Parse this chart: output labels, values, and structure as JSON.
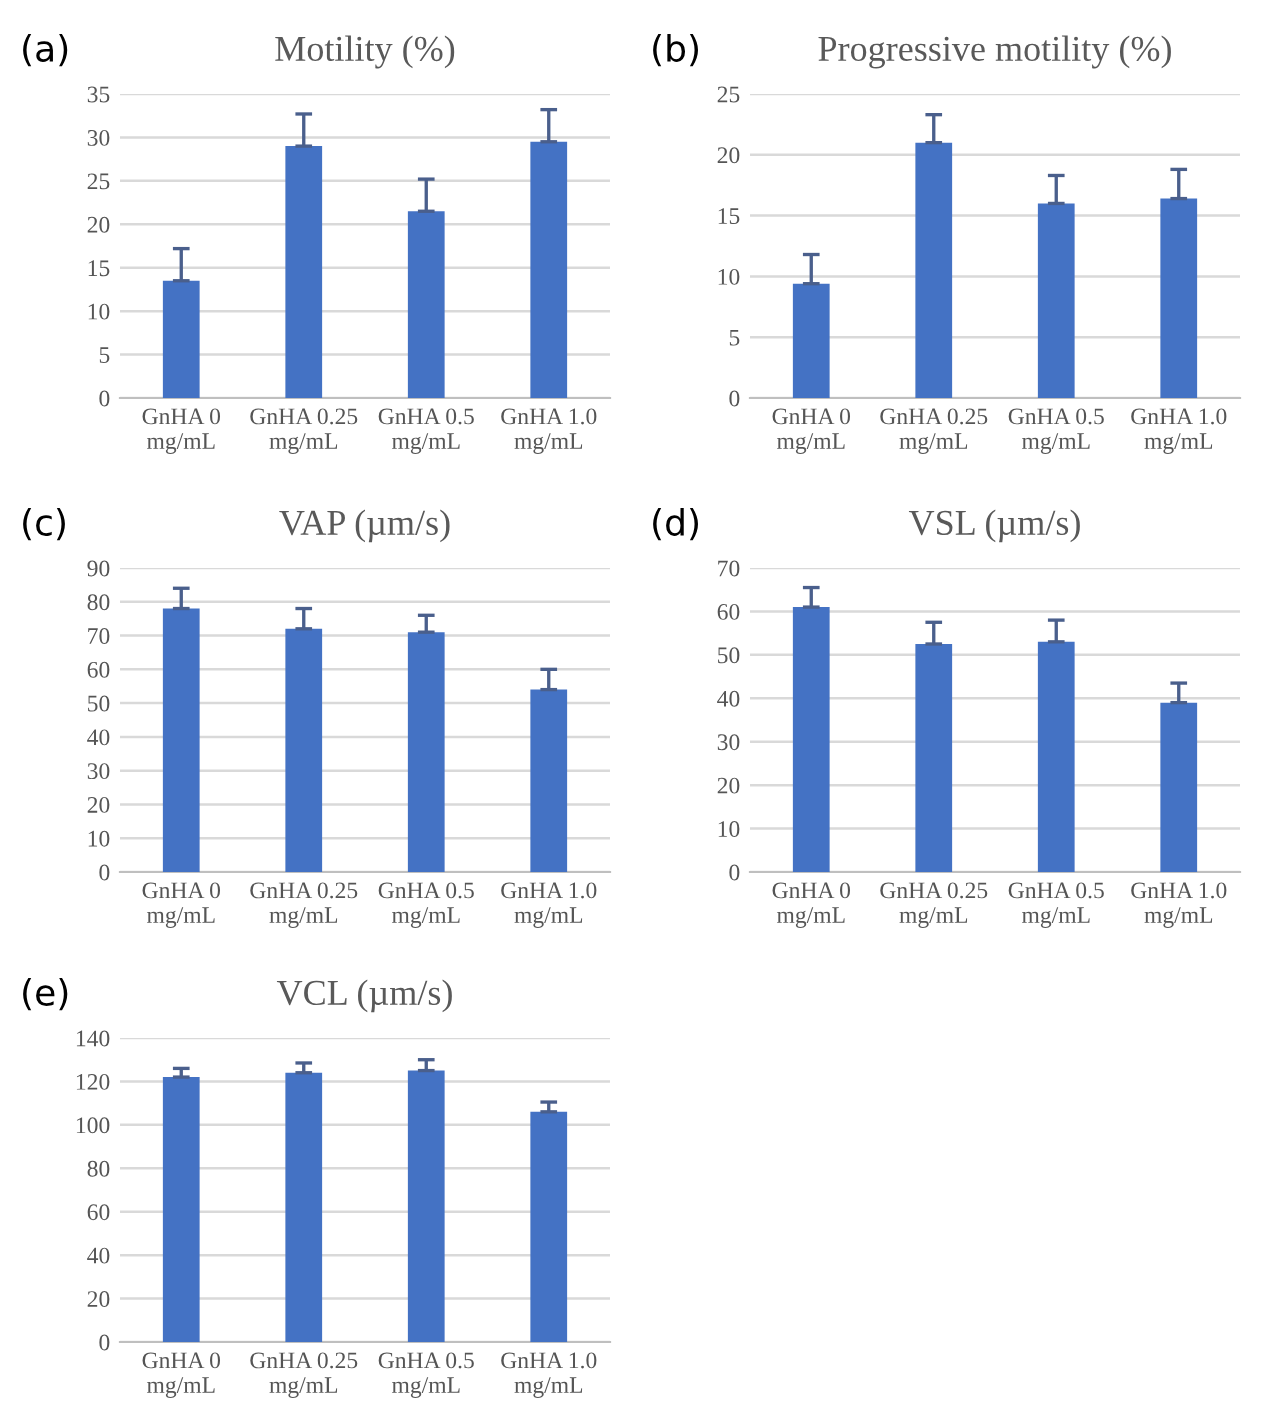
{
  "chart_data": [
    {
      "type": "bar",
      "title": "Motility (%)",
      "annotations": [
        "(a)"
      ],
      "categories": [
        "GnHA 0\nmg/mL",
        "GnHA 0.25\nmg/mL",
        "GnHA 0.5\nmg/mL",
        "GnHA 1.0\nmg/mL"
      ],
      "values": [
        13.5,
        29,
        21.5,
        29.5
      ],
      "errors": [
        [
          13.5,
          17.2
        ],
        [
          29,
          32.7
        ],
        [
          21.5,
          25.2
        ],
        [
          29.5,
          33.2
        ]
      ],
      "color": "#4472c4",
      "ylim": [
        0,
        35
      ],
      "yticks": [
        0,
        5,
        10,
        15,
        20,
        25,
        30,
        35
      ],
      "grid": "y",
      "legend": false
    },
    {
      "type": "bar",
      "title": "Progressive motility (%)",
      "annotations": [
        "(b)"
      ],
      "categories": [
        "GnHA 0\nmg/mL",
        "GnHA 0.25\nmg/mL",
        "GnHA 0.5\nmg/mL",
        "GnHA 1.0\nmg/mL"
      ],
      "values": [
        9.4,
        21,
        16,
        16.4
      ],
      "errors": [
        [
          9.4,
          11.8
        ],
        [
          21,
          23.3
        ],
        [
          16,
          18.3
        ],
        [
          16.4,
          18.8
        ]
      ],
      "color": "#4472c4",
      "ylim": [
        0,
        25
      ],
      "yticks": [
        0,
        5,
        10,
        15,
        20,
        25
      ],
      "grid": "y",
      "legend": false
    },
    {
      "type": "bar",
      "title": "VAP (µm/s)",
      "annotations": [
        "(c)"
      ],
      "categories": [
        "GnHA 0\nmg/mL",
        "GnHA 0.25\nmg/mL",
        "GnHA 0.5\nmg/mL",
        "GnHA 1.0\nmg/mL"
      ],
      "values": [
        78,
        72,
        71,
        54
      ],
      "errors": [
        [
          78,
          84
        ],
        [
          72,
          78
        ],
        [
          71,
          76
        ],
        [
          54,
          60
        ]
      ],
      "color": "#4472c4",
      "ylim": [
        0,
        90
      ],
      "yticks": [
        0,
        10,
        20,
        30,
        40,
        50,
        60,
        70,
        80,
        90
      ],
      "grid": "y",
      "legend": false
    },
    {
      "type": "bar",
      "title": "VSL (µm/s)",
      "annotations": [
        "(d)"
      ],
      "categories": [
        "GnHA 0\nmg/mL",
        "GnHA 0.25\nmg/mL",
        "GnHA 0.5\nmg/mL",
        "GnHA 1.0\nmg/mL"
      ],
      "values": [
        61,
        52.5,
        53,
        39
      ],
      "errors": [
        [
          61,
          65.5
        ],
        [
          52.5,
          57.5
        ],
        [
          53,
          58
        ],
        [
          39,
          43.5
        ]
      ],
      "color": "#4472c4",
      "ylim": [
        0,
        70
      ],
      "yticks": [
        0,
        10,
        20,
        30,
        40,
        50,
        60,
        70
      ],
      "grid": "y",
      "legend": false
    },
    {
      "type": "bar",
      "title": "VCL (µm/s)",
      "annotations": [
        "(e)"
      ],
      "categories": [
        "GnHA 0\nmg/mL",
        "GnHA 0.25\nmg/mL",
        "GnHA 0.5\nmg/mL",
        "GnHA 1.0\nmg/mL"
      ],
      "values": [
        122,
        124,
        125,
        106
      ],
      "errors": [
        [
          122,
          126
        ],
        [
          124,
          128.5
        ],
        [
          125,
          130
        ],
        [
          106,
          110.5
        ]
      ],
      "color": "#4472c4",
      "ylim": [
        0,
        140
      ],
      "yticks": [
        0,
        20,
        40,
        60,
        80,
        100,
        120,
        140
      ],
      "grid": "y",
      "legend": false
    }
  ]
}
